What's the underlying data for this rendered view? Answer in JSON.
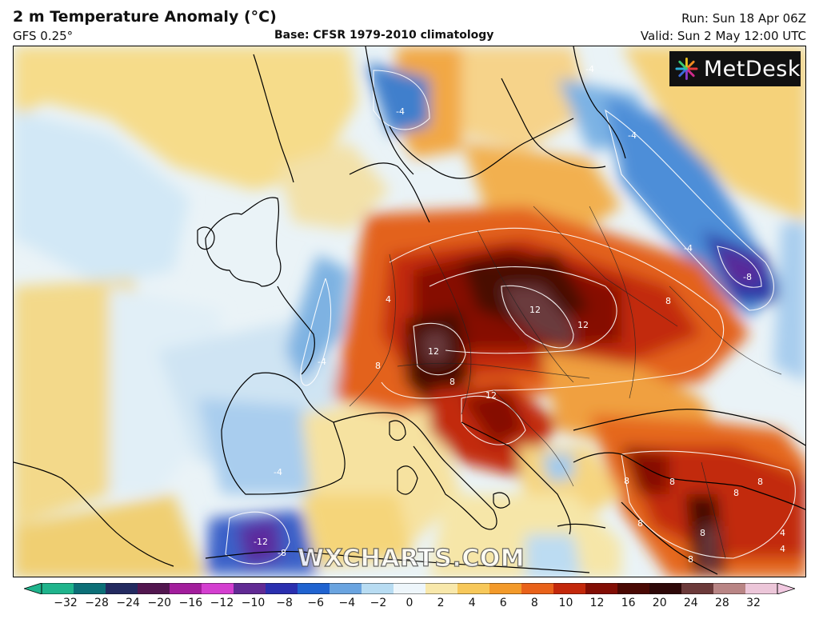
{
  "header": {
    "title": "2 m Temperature Anomaly (°C)",
    "model": "GFS 0.25°",
    "base": "Base: CFSR 1979-2010 climatology",
    "run": "Run: Sun 18 Apr 06Z",
    "valid": "Valid: Sun 2 May 12:00 UTC"
  },
  "logo": {
    "text": "MetDesk",
    "icon": "metdesk-starburst-icon"
  },
  "watermark": "WXCHARTS.COM",
  "colorbar": {
    "ticks": [
      "−32",
      "−28",
      "−24",
      "−20",
      "−16",
      "−12",
      "−10",
      "−8",
      "−6",
      "−4",
      "−2",
      "0",
      "2",
      "4",
      "6",
      "8",
      "10",
      "12",
      "16",
      "20",
      "24",
      "28",
      "32"
    ],
    "colors": [
      "#1fb48c",
      "#0c6f77",
      "#232a60",
      "#52164f",
      "#a21d9c",
      "#d43fd0",
      "#612a94",
      "#2a2faf",
      "#2063d0",
      "#6aa4e0",
      "#b8dcf2",
      "#eef6fb",
      "#f8e8ab",
      "#f7c85a",
      "#f39a2a",
      "#e9621a",
      "#c3280b",
      "#820e05",
      "#4a0904",
      "#2e0808",
      "#6c3a3a",
      "#b98585",
      "#ecc6d9"
    ]
  },
  "map": {
    "contour_labels": [
      "-4",
      "-4",
      "-4",
      "-4",
      "-4",
      "-4",
      "-8",
      "4",
      "4",
      "8",
      "8",
      "8",
      "8",
      "8",
      "8",
      "8",
      "8",
      "12",
      "12",
      "12",
      "12",
      "-12",
      "-8",
      "8",
      "8",
      "4"
    ],
    "colors": {
      "neg_light": "#d6ecf8",
      "neg_mid": "#8fc3ea",
      "neg_strong": "#3a82d0",
      "neg_deep": "#2637a6",
      "neg_purple": "#6a2aa0",
      "neutral_white": "#f4f8fa",
      "pos_light": "#f7e4a2",
      "pos_yellow": "#f5cc62",
      "pos_orange": "#f0a03a",
      "pos_red_orange": "#e4601c",
      "pos_red": "#c4280e",
      "pos_dark_red": "#861006",
      "pos_maroon": "#4a0a06",
      "pos_deep": "#5a3440"
    }
  }
}
